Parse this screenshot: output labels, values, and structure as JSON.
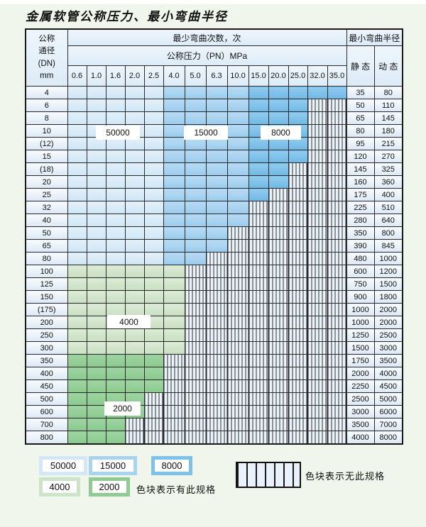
{
  "title": "金属软管公称压力、最小弯曲半径",
  "table": {
    "corner": {
      "lines": [
        "公称",
        "通径",
        "(DN)",
        "mm"
      ]
    },
    "bend_cycles_header": "最少弯曲次数，次",
    "pressure_header": "公称压力（PN）MPa",
    "radius_header": "最小弯曲半径",
    "static_header": "静 态",
    "dynamic_header": "动 态",
    "pressures": [
      "0.6",
      "1.0",
      "1.6",
      "2.0",
      "2.5",
      "4.0",
      "5.0",
      "6.3",
      "10.0",
      "15.0",
      "20.0",
      "25.0",
      "32.0",
      "35.0"
    ],
    "rows": [
      {
        "dn": "4",
        "filled": 14,
        "palette": "blue",
        "static": "35",
        "dynamic": "80"
      },
      {
        "dn": "6",
        "filled": 12,
        "palette": "blue",
        "static": "50",
        "dynamic": "110"
      },
      {
        "dn": "8",
        "filled": 12,
        "palette": "blue",
        "static": "65",
        "dynamic": "145"
      },
      {
        "dn": "10",
        "filled": 12,
        "palette": "blue",
        "static": "80",
        "dynamic": "180"
      },
      {
        "dn": "(12)",
        "filled": 12,
        "palette": "blue",
        "static": "95",
        "dynamic": "215"
      },
      {
        "dn": "15",
        "filled": 12,
        "palette": "blue",
        "static": "120",
        "dynamic": "270"
      },
      {
        "dn": "(18)",
        "filled": 11,
        "palette": "blue",
        "static": "145",
        "dynamic": "325"
      },
      {
        "dn": "20",
        "filled": 11,
        "palette": "blue",
        "static": "160",
        "dynamic": "360"
      },
      {
        "dn": "25",
        "filled": 10,
        "palette": "blue",
        "static": "175",
        "dynamic": "400"
      },
      {
        "dn": "32",
        "filled": 9,
        "palette": "blue",
        "static": "225",
        "dynamic": "510"
      },
      {
        "dn": "40",
        "filled": 9,
        "palette": "blue",
        "static": "280",
        "dynamic": "640"
      },
      {
        "dn": "50",
        "filled": 8,
        "palette": "blue",
        "static": "350",
        "dynamic": "800"
      },
      {
        "dn": "65",
        "filled": 8,
        "palette": "blue",
        "static": "390",
        "dynamic": "845"
      },
      {
        "dn": "80",
        "filled": 7,
        "palette": "blue",
        "static": "480",
        "dynamic": "1000"
      },
      {
        "dn": "100",
        "filled": 6,
        "palette": "green4000",
        "static": "600",
        "dynamic": "1200"
      },
      {
        "dn": "125",
        "filled": 6,
        "palette": "green4000",
        "static": "750",
        "dynamic": "1500"
      },
      {
        "dn": "150",
        "filled": 6,
        "palette": "green4000",
        "static": "900",
        "dynamic": "1800"
      },
      {
        "dn": "(175)",
        "filled": 6,
        "palette": "green4000",
        "static": "1000",
        "dynamic": "2000"
      },
      {
        "dn": "200",
        "filled": 6,
        "palette": "green4000",
        "static": "1000",
        "dynamic": "2000"
      },
      {
        "dn": "250",
        "filled": 6,
        "palette": "green4000",
        "static": "1250",
        "dynamic": "2500"
      },
      {
        "dn": "300",
        "filled": 6,
        "palette": "green4000",
        "static": "1500",
        "dynamic": "3000"
      },
      {
        "dn": "350",
        "filled": 5,
        "palette": "green2000",
        "static": "1750",
        "dynamic": "3500"
      },
      {
        "dn": "400",
        "filled": 5,
        "palette": "green2000",
        "static": "2000",
        "dynamic": "4000"
      },
      {
        "dn": "450",
        "filled": 5,
        "palette": "green2000",
        "static": "2250",
        "dynamic": "4500"
      },
      {
        "dn": "500",
        "filled": 4,
        "palette": "green2000",
        "static": "2500",
        "dynamic": "5000"
      },
      {
        "dn": "600",
        "filled": 4,
        "palette": "green2000",
        "static": "3000",
        "dynamic": "6000"
      },
      {
        "dn": "700",
        "filled": 3,
        "palette": "green2000",
        "static": "3500",
        "dynamic": "7000"
      },
      {
        "dn": "800",
        "filled": 3,
        "palette": "green2000",
        "static": "4000",
        "dynamic": "8000"
      }
    ],
    "overlay_labels": [
      "50000",
      "15000",
      "8000",
      "4000",
      "2000"
    ]
  },
  "legend": {
    "available_swatches": [
      {
        "value": "50000",
        "palette": "c50000"
      },
      {
        "value": "15000",
        "palette": "c15000"
      },
      {
        "value": "8000",
        "palette": "c8000"
      },
      {
        "value": "4000",
        "palette": "c4000"
      },
      {
        "value": "2000",
        "palette": "c2000"
      }
    ],
    "available_label": "色块表示有此规格",
    "unavailable_label": "色块表示无此规格"
  },
  "colors": {
    "c50000": "#d3e8f7",
    "c15000": "#a8d4f0",
    "c8000": "#7fc2e9",
    "c4000": "#cde3c7",
    "c2000": "#8fcb93",
    "no_spec_bg": "#e9f2fb",
    "grid_line": "#2b2b2b",
    "page_bg": "#f1f6ec"
  }
}
